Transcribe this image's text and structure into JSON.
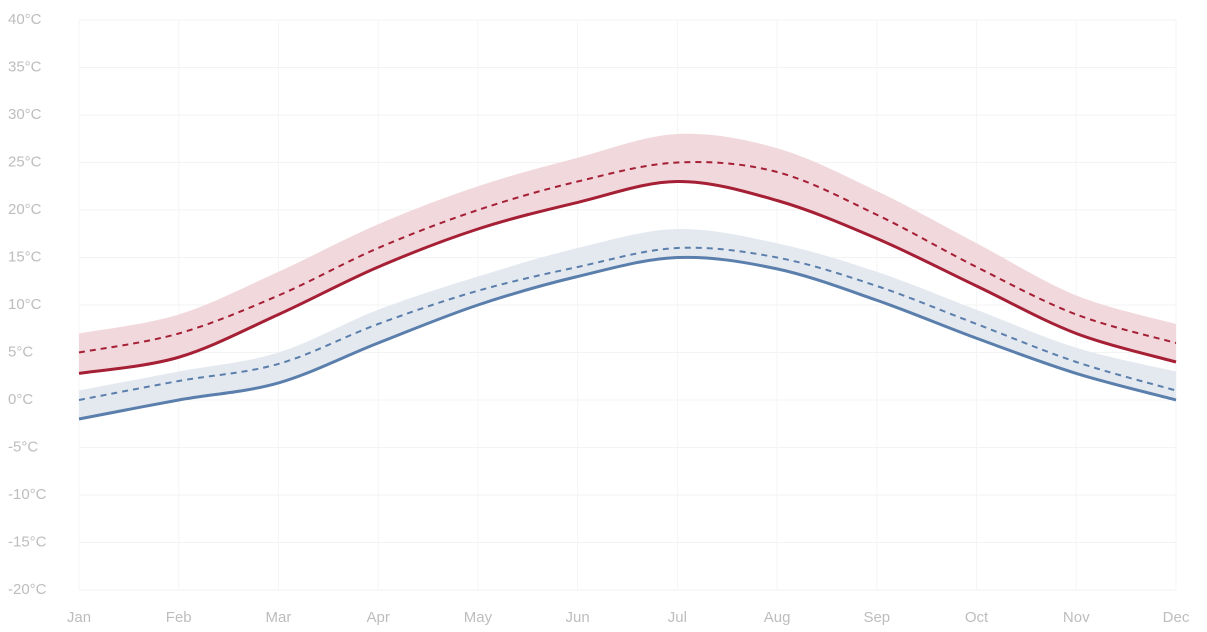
{
  "chart_data": {
    "type": "line",
    "categories": [
      "Jan",
      "Feb",
      "Mar",
      "Apr",
      "May",
      "Jun",
      "Jul",
      "Aug",
      "Sep",
      "Oct",
      "Nov",
      "Dec"
    ],
    "series": [
      {
        "color": "#a51f35",
        "style": "solid",
        "values": [
          2.8,
          4.5,
          9,
          14,
          18,
          20.8,
          23,
          21,
          17,
          12,
          7,
          4
        ]
      },
      {
        "color": "#a51f35",
        "style": "dashed",
        "values": [
          5,
          7,
          11,
          16,
          20,
          23,
          25,
          24,
          19.5,
          14,
          9,
          6
        ]
      },
      {
        "color": "#f1d8dc",
        "style": "band",
        "values": [
          7,
          9,
          13.5,
          18.5,
          22.5,
          25.5,
          28,
          26.5,
          22,
          16.5,
          11,
          8
        ]
      },
      {
        "color": "#5b7fac",
        "style": "solid",
        "values": [
          -2,
          0,
          1.8,
          6,
          10,
          13,
          15,
          13.8,
          10.5,
          6.5,
          2.8,
          0
        ]
      },
      {
        "color": "#5b7fac",
        "style": "dashed",
        "values": [
          0,
          2,
          3.8,
          8,
          11.5,
          14,
          16,
          15,
          12,
          8,
          4,
          1
        ]
      },
      {
        "color": "#e4e9f0",
        "style": "band",
        "values": [
          1,
          3,
          5,
          9.5,
          13,
          16,
          18,
          16.5,
          13.5,
          9.5,
          5.5,
          3
        ]
      }
    ],
    "ylim": [
      -20,
      40
    ],
    "yticks": [
      {
        "value": -20,
        "label": "-20°C"
      },
      {
        "value": -15,
        "label": "-15°C"
      },
      {
        "value": -10,
        "label": "-10°C"
      },
      {
        "value": -5,
        "label": "-5°C"
      },
      {
        "value": 0,
        "label": "0°C"
      },
      {
        "value": 5,
        "label": "5°C"
      },
      {
        "value": 10,
        "label": "10°C"
      },
      {
        "value": 15,
        "label": "15°C"
      },
      {
        "value": 20,
        "label": "20°C"
      },
      {
        "value": 25,
        "label": "25°C"
      },
      {
        "value": 30,
        "label": "30°C"
      },
      {
        "value": 35,
        "label": "35°C"
      },
      {
        "value": 40,
        "label": "40°C"
      }
    ],
    "grid": true
  }
}
